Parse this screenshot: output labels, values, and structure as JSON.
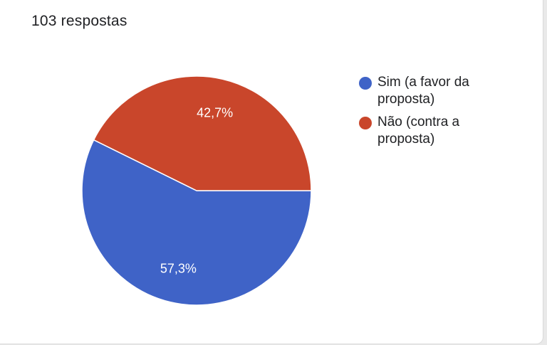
{
  "header": {
    "response_count": "103 respostas"
  },
  "chart_data": {
    "type": "pie",
    "slices": [
      {
        "label": "Sim (a favor da proposta)",
        "value": 57.3,
        "display": "57,3%",
        "color": "#3f63c7"
      },
      {
        "label": "Não (contra a proposta)",
        "value": 42.7,
        "display": "42,7%",
        "color": "#c9462b"
      }
    ],
    "legend_position": "right"
  },
  "colors": {
    "card_background": "#ffffff",
    "slice_label_text": "#ffffff"
  }
}
